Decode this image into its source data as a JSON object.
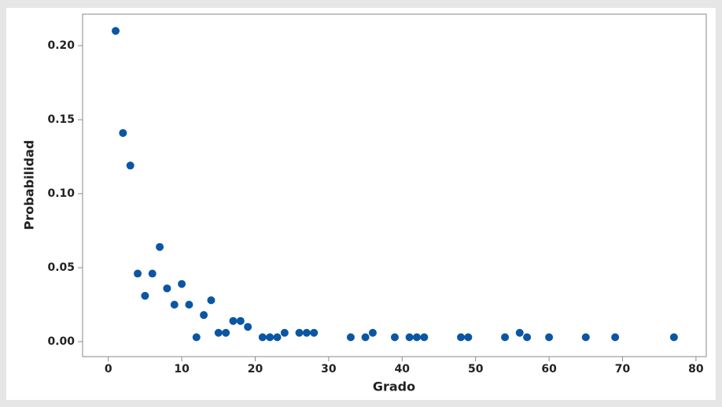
{
  "chart_data": {
    "type": "scatter",
    "x_label": "Grado",
    "y_label": "Probabilidad",
    "color": "#0b56a4",
    "xlim": [
      -3.5,
      81.4
    ],
    "ylim": [
      -0.0101,
      0.2213
    ],
    "xticks": [
      0,
      10,
      20,
      30,
      40,
      50,
      60,
      70,
      80
    ],
    "yticks": [
      {
        "value": 0,
        "label": "0.00"
      },
      {
        "value": 0.05,
        "label": "0.05"
      },
      {
        "value": 0.1,
        "label": "0.10"
      },
      {
        "value": 0.15,
        "label": "0.15"
      },
      {
        "value": 0.2,
        "label": "0.20"
      }
    ],
    "x": [
      1,
      2,
      3,
      4,
      5,
      6,
      7,
      8,
      9,
      10,
      11,
      12,
      13,
      14,
      15,
      16,
      17,
      18,
      19,
      21,
      22,
      23,
      24,
      26,
      27,
      28,
      33,
      35,
      36,
      39,
      41,
      42,
      43,
      48,
      49,
      54,
      56,
      57,
      60,
      65,
      69,
      77
    ],
    "values": [
      0.21,
      0.141,
      0.119,
      0.046,
      0.031,
      0.046,
      0.064,
      0.036,
      0.025,
      0.039,
      0.025,
      0.003,
      0.018,
      0.028,
      0.006,
      0.006,
      0.014,
      0.014,
      0.01,
      0.003,
      0.003,
      0.003,
      0.006,
      0.006,
      0.006,
      0.006,
      0.003,
      0.003,
      0.006,
      0.003,
      0.003,
      0.003,
      0.003,
      0.003,
      0.003,
      0.003,
      0.006,
      0.003,
      0.003,
      0.003,
      0.003,
      0.003
    ]
  }
}
